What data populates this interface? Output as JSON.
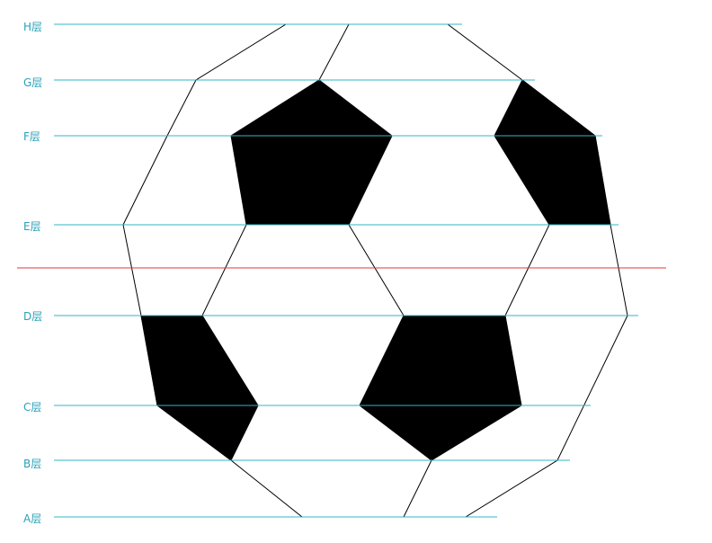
{
  "layers": {
    "H": "H层",
    "G": "G层",
    "F": "F层",
    "E": "E层",
    "D": "D层",
    "C": "C层",
    "B": "B层",
    "A": "A层"
  },
  "colors": {
    "label": "#2aa0b8",
    "layer_line": "#33b5c8",
    "center_line": "#e03a3a",
    "ink": "#000000",
    "paper": "#ffffff"
  }
}
